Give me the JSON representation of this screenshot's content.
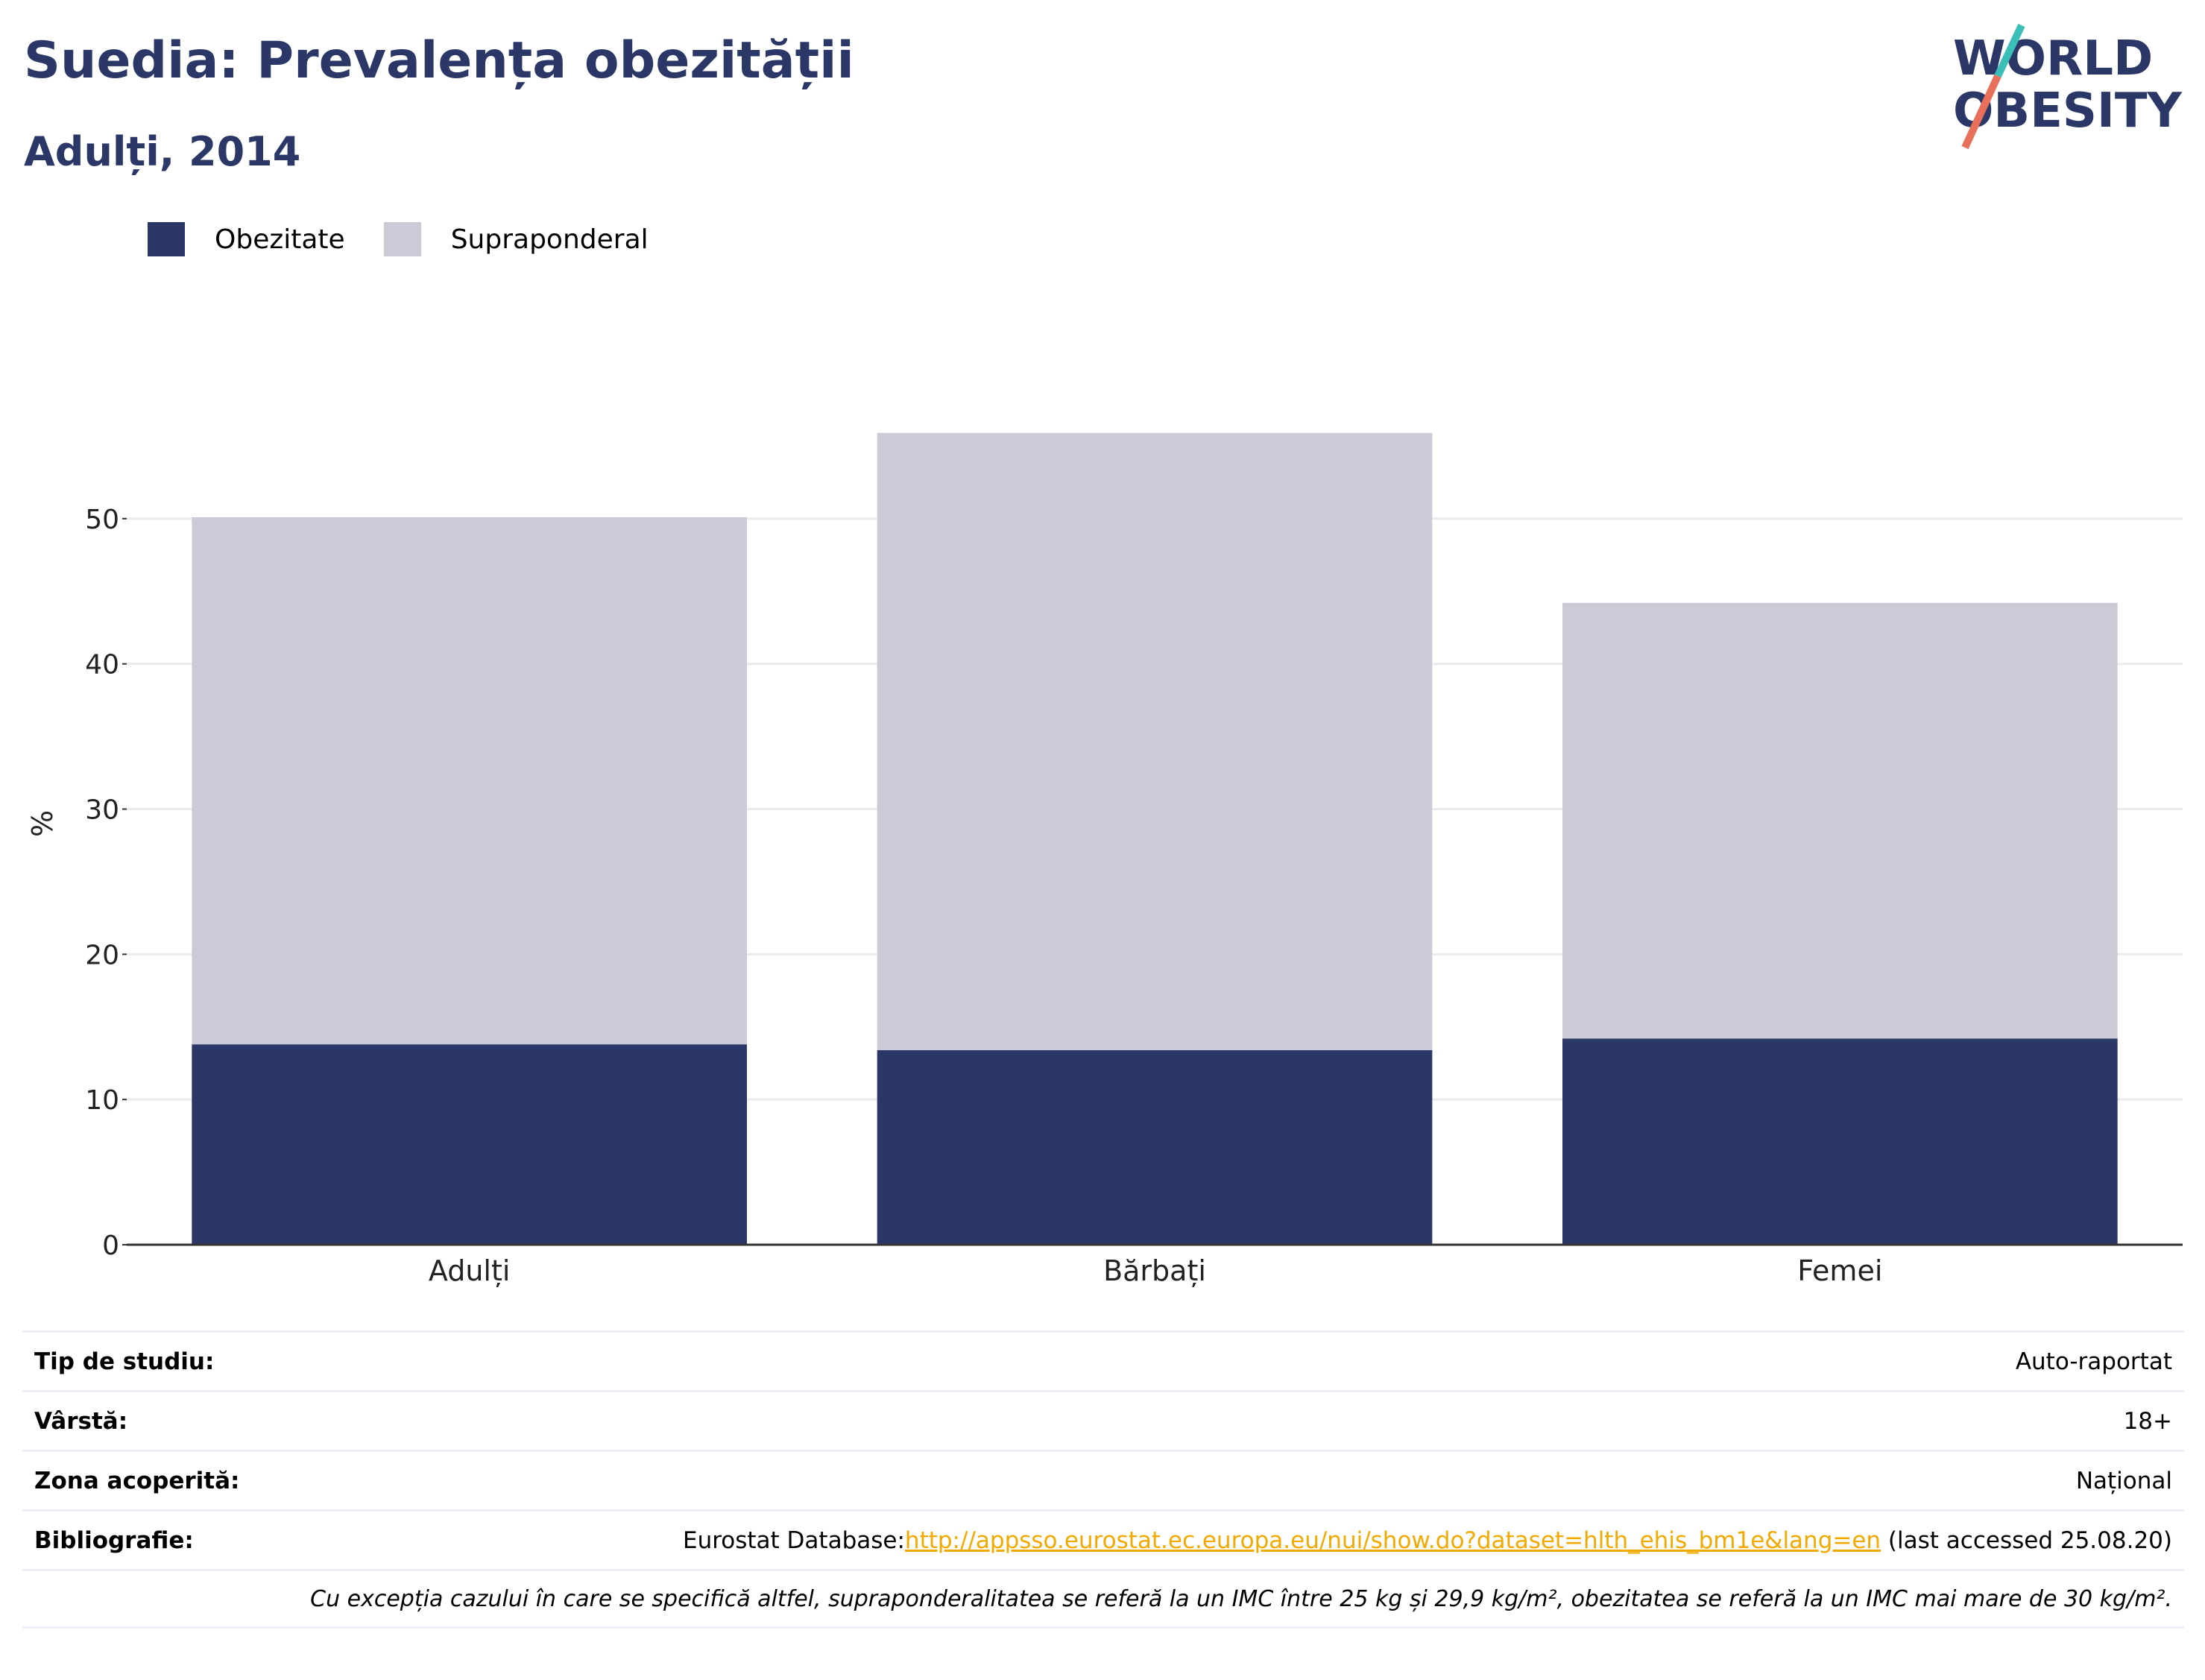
{
  "header": {
    "title": "Suedia: Prevalența obezității",
    "subtitle": "Adulți, 2014"
  },
  "logo": {
    "line1": "WORLD",
    "line2": "OBESITY",
    "colors": {
      "text": "#2b3766",
      "slash_teal": "#3bbdb8",
      "slash_coral": "#e8705a"
    }
  },
  "legend": {
    "items": [
      {
        "label": "Obezitate",
        "color": "#2b3766"
      },
      {
        "label": "Supraponderal",
        "color": "#cacbd7"
      }
    ]
  },
  "chart_data": {
    "type": "bar",
    "stacked": true,
    "categories": [
      "Adulți",
      "Bărbați",
      "Femei"
    ],
    "series": [
      {
        "name": "Obezitate",
        "color": "#2b3766",
        "values": [
          13.8,
          13.4,
          14.2
        ]
      },
      {
        "name": "Supraponderal",
        "color": "#cacbd7",
        "values": [
          36.3,
          42.5,
          30.0
        ]
      }
    ],
    "ylabel": "%",
    "xlabel": "",
    "ylim": [
      0,
      58
    ],
    "yticks": [
      0,
      10,
      20,
      30,
      40,
      50
    ],
    "grid": true,
    "legend_position": "top-left"
  },
  "info": {
    "rows": [
      {
        "label": "Tip de studiu:",
        "value": "Auto-raportat"
      },
      {
        "label": "Vârstă:",
        "value": "18+"
      },
      {
        "label": "Zona acoperită:",
        "value": "Național"
      }
    ],
    "bibliography": {
      "label": "Bibliografie:",
      "prefix": "Eurostat Database:",
      "link": "http://appsso.eurostat.ec.europa.eu/nui/show.do?dataset=hlth_ehis_bm1e&lang=en",
      "suffix": " (last accessed 25.08.20)"
    },
    "note": "Cu excepția cazului în care se specifică altfel, supraponderalitatea se referă la un IMC între 25 kg și 29,9 kg/m², obezitatea se referă la un IMC mai mare de 30 kg/m²."
  }
}
